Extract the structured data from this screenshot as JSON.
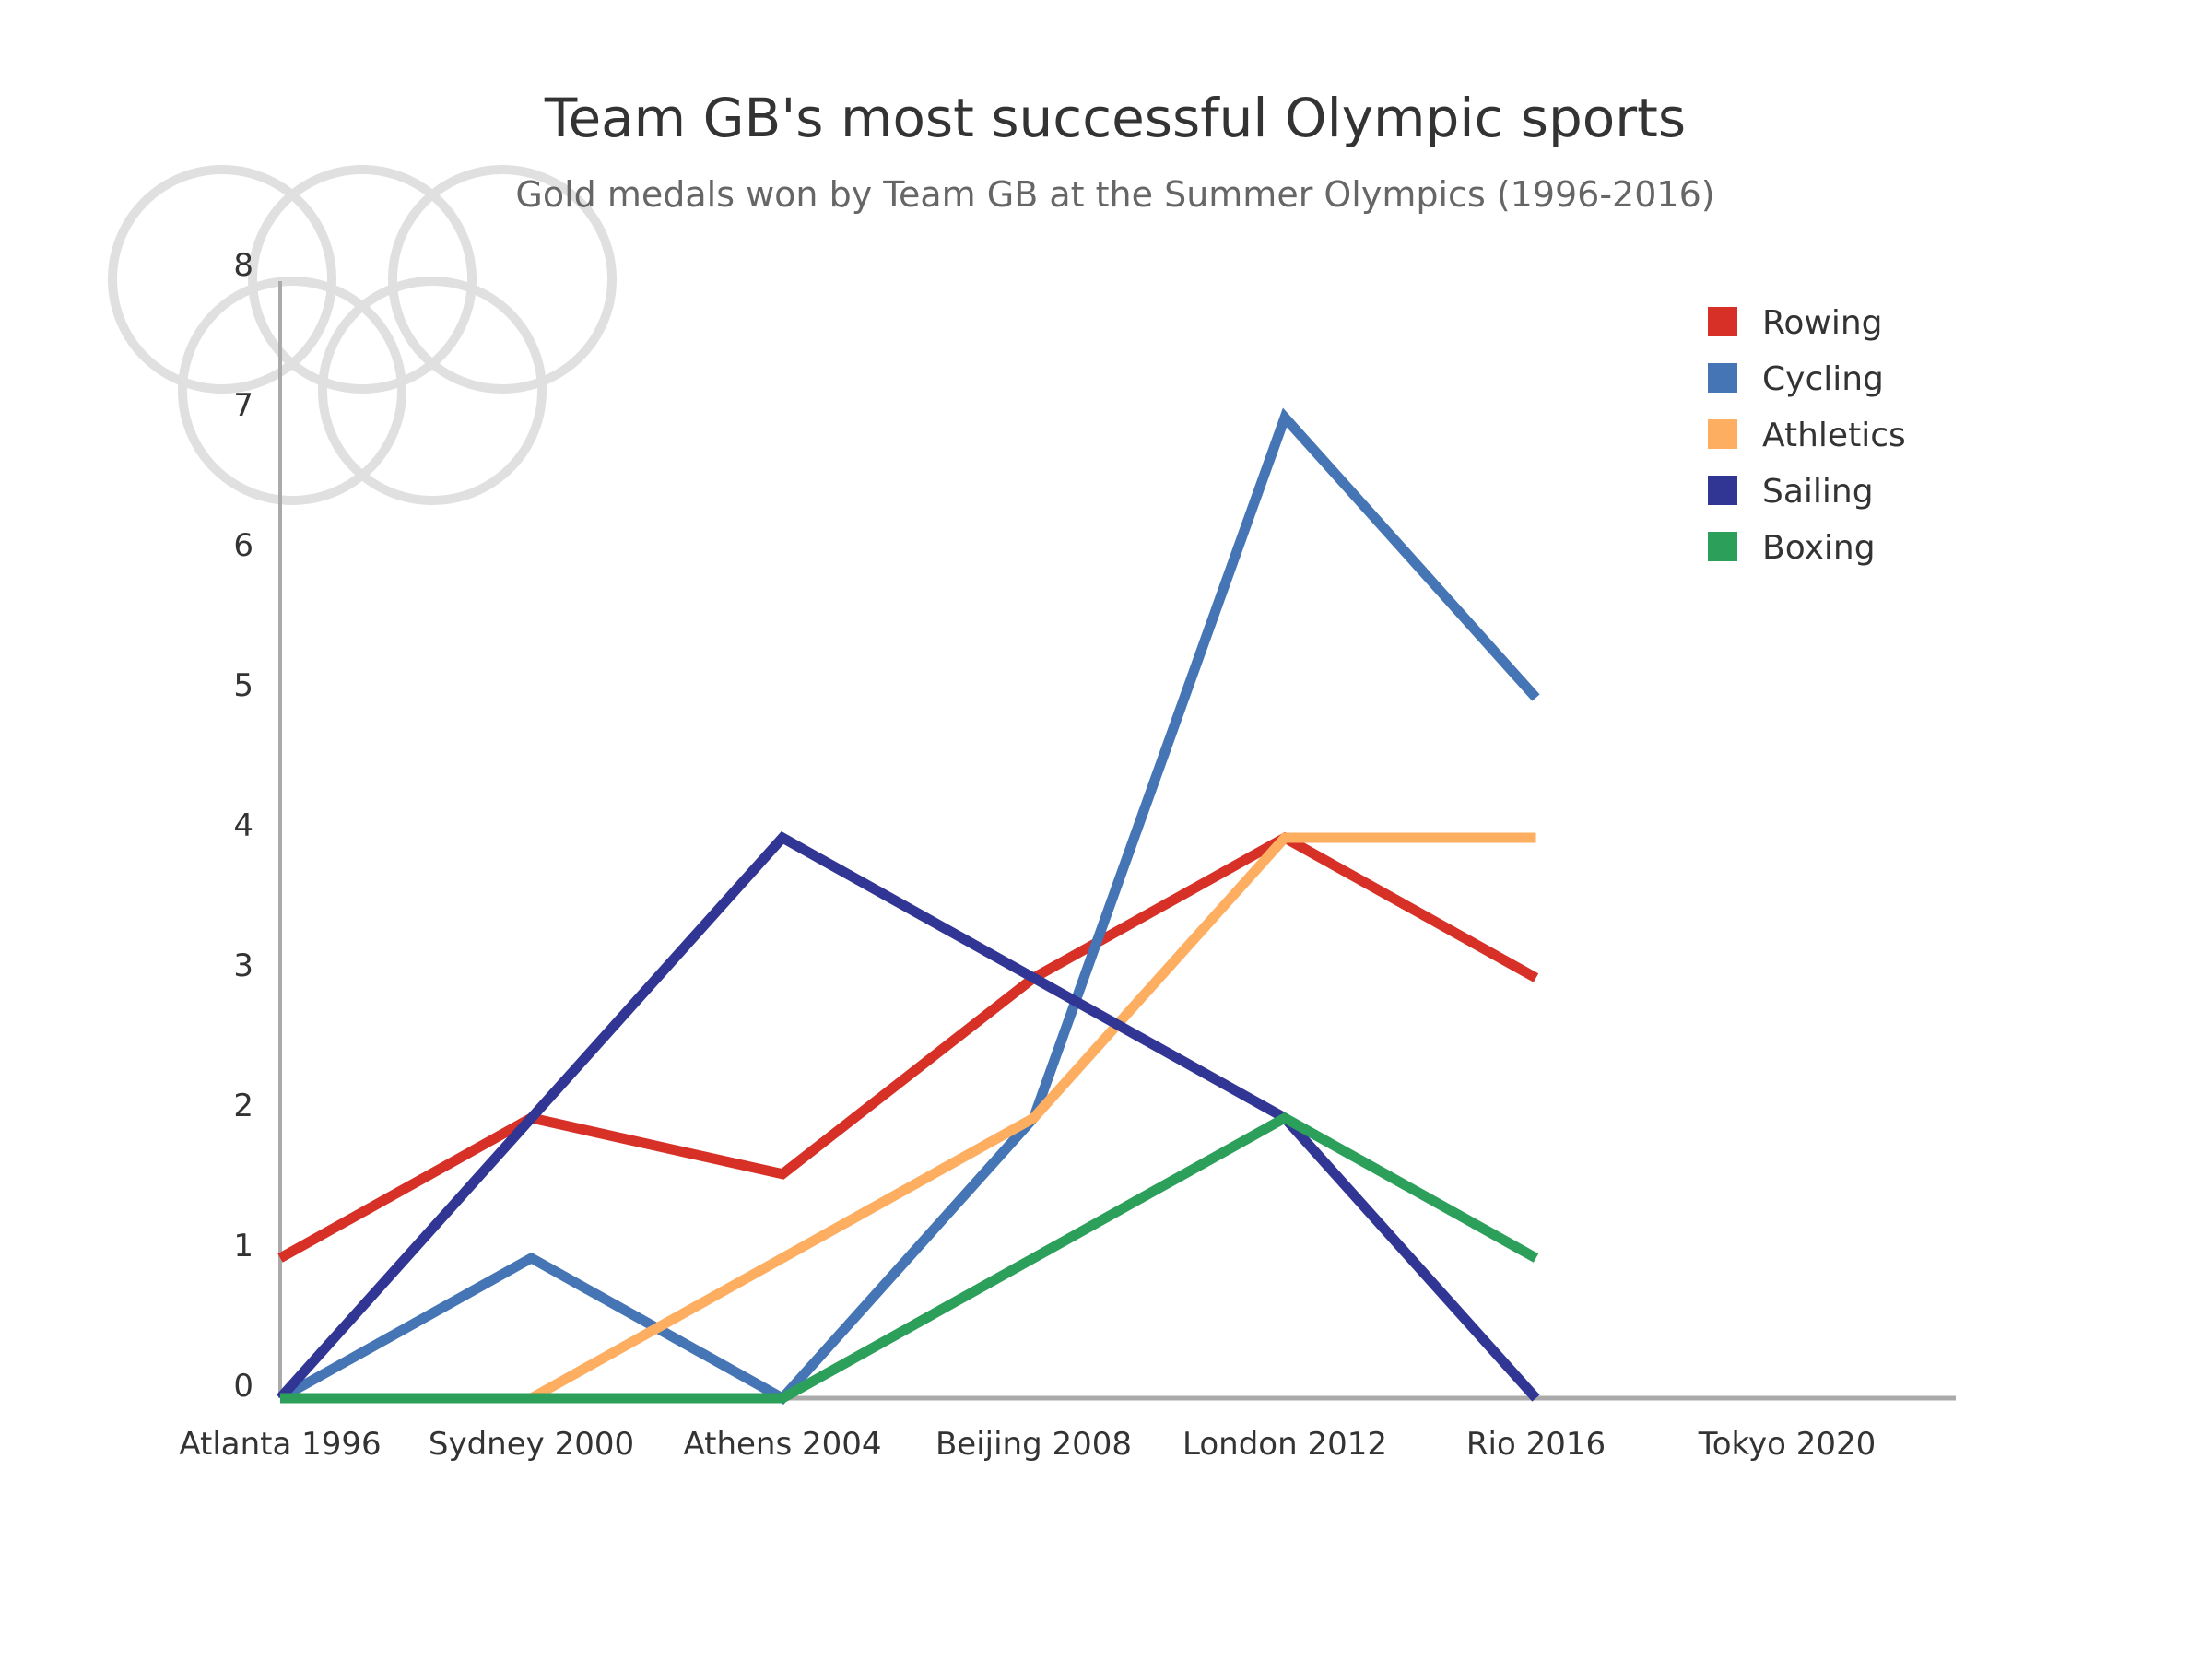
{
  "chart_data": {
    "type": "line",
    "title": "Team GB's most successful Olympic sports",
    "subtitle": "Gold medals won by Team GB at the Summer Olympics (1996-2016)",
    "xlabel": "",
    "ylabel": "",
    "categories": [
      "Atlanta 1996",
      "Sydney 2000",
      "Athens 2004",
      "Beijing 2008",
      "London 2012",
      "Rio 2016",
      "Tokyo 2020"
    ],
    "y_ticks": [
      "0",
      "1",
      "2",
      "3",
      "4",
      "5",
      "6",
      "7",
      "8"
    ],
    "ylim": [
      0,
      8
    ],
    "grid": false,
    "legend_position": "top-right",
    "decoration": "olympic-rings-outline",
    "series": [
      {
        "name": "Rowing",
        "color": "#d73027",
        "values": [
          1,
          2,
          1.6,
          3,
          4,
          3,
          null
        ]
      },
      {
        "name": "Cycling",
        "color": "#4575b4",
        "values": [
          0,
          1,
          0,
          2,
          7,
          5,
          null
        ]
      },
      {
        "name": "Athletics",
        "color": "#fdae61",
        "values": [
          null,
          0,
          1,
          2,
          4,
          4,
          null
        ]
      },
      {
        "name": "Sailing",
        "color": "#313695",
        "values": [
          0,
          2,
          4,
          3,
          2,
          0,
          null
        ]
      },
      {
        "name": "Boxing",
        "color": "#2ca05a",
        "values": [
          0,
          0,
          0,
          1,
          2,
          1,
          null
        ]
      }
    ]
  }
}
